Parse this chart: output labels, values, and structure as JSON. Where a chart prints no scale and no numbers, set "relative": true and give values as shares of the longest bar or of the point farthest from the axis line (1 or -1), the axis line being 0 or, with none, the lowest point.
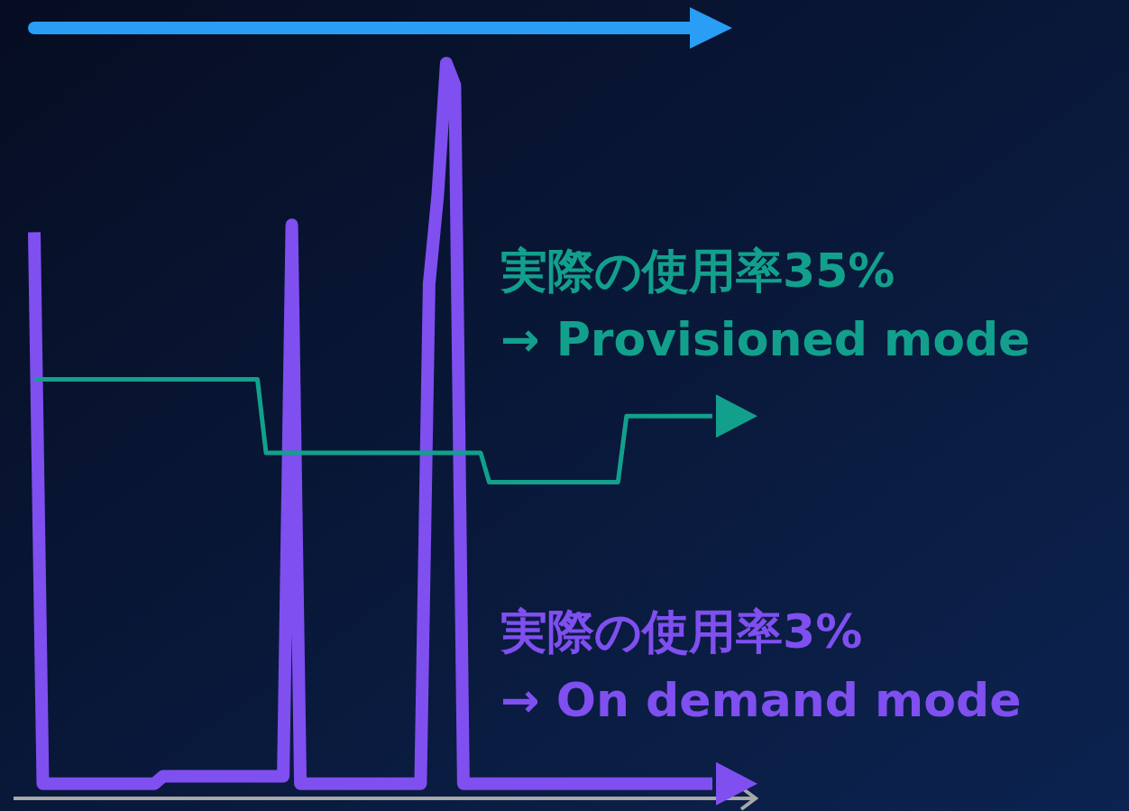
{
  "chart_data": {
    "type": "line",
    "relative": true,
    "categories": [
      null,
      null,
      null,
      null,
      null,
      null,
      null,
      null,
      null,
      null,
      null,
      null,
      null,
      null,
      null,
      null,
      null,
      null,
      null,
      null,
      null,
      null,
      null,
      null,
      null,
      null,
      null,
      null,
      null,
      null,
      null,
      null,
      null,
      null,
      null,
      null,
      null,
      null,
      null,
      null,
      null,
      null,
      null,
      null,
      null,
      null,
      null,
      null,
      null,
      null,
      null,
      null,
      null,
      null,
      null,
      null,
      null,
      null,
      null,
      null,
      null,
      null,
      null,
      null,
      null,
      null,
      null,
      null,
      null,
      null,
      null,
      null,
      null,
      null,
      null,
      null,
      null,
      null,
      null,
      null
    ],
    "series": [
      {
        "color": "#7f4ff0",
        "values": [
          0.77,
          0.02,
          0.02,
          0.02,
          0.02,
          0.02,
          0.02,
          0.02,
          0.02,
          0.02,
          0.02,
          0.02,
          0.02,
          0.02,
          0.02,
          0.03,
          0.03,
          0.03,
          0.03,
          0.03,
          0.03,
          0.03,
          0.03,
          0.03,
          0.03,
          0.03,
          0.03,
          0.03,
          0.03,
          0.03,
          0.78,
          0.02,
          0.02,
          0.02,
          0.02,
          0.02,
          0.02,
          0.02,
          0.02,
          0.02,
          0.02,
          0.02,
          0.02,
          0.02,
          0.02,
          0.02,
          0.7,
          0.82,
          1,
          0.97,
          0.02,
          0.02,
          0.02,
          0.02,
          0.02,
          0.02,
          0.02,
          0.02,
          0.02,
          0.02,
          0.02,
          0.02,
          0.02,
          0.02,
          0.02,
          0.02,
          0.02,
          0.02,
          0.02,
          0.02,
          0.02,
          0.02,
          0.02,
          0.02,
          0.02,
          0.02,
          0.02,
          0.02,
          0.02,
          0.02
        ]
      },
      {
        "color": "#12a08c",
        "values": [
          0.57,
          0.57,
          0.57,
          0.57,
          0.57,
          0.57,
          0.57,
          0.57,
          0.57,
          0.57,
          0.57,
          0.57,
          0.57,
          0.57,
          0.57,
          0.57,
          0.57,
          0.57,
          0.57,
          0.57,
          0.57,
          0.57,
          0.57,
          0.57,
          0.57,
          0.57,
          0.57,
          0.47,
          0.47,
          0.47,
          0.47,
          0.47,
          0.47,
          0.47,
          0.47,
          0.47,
          0.47,
          0.47,
          0.47,
          0.47,
          0.47,
          0.47,
          0.47,
          0.47,
          0.47,
          0.47,
          0.47,
          0.47,
          0.47,
          0.47,
          0.47,
          0.47,
          0.47,
          0.43,
          0.43,
          0.43,
          0.43,
          0.43,
          0.43,
          0.43,
          0.43,
          0.43,
          0.43,
          0.43,
          0.43,
          0.43,
          0.43,
          0.43,
          0.43,
          0.52,
          0.52,
          0.52,
          0.52,
          0.52,
          0.52,
          0.52,
          0.52,
          0.52,
          0.52,
          0.52
        ]
      }
    ],
    "annotations": [
      "実際の使用率35%\n→ Provisioned mode",
      "実際の使用率3%\n→ On demand mode"
    ]
  }
}
